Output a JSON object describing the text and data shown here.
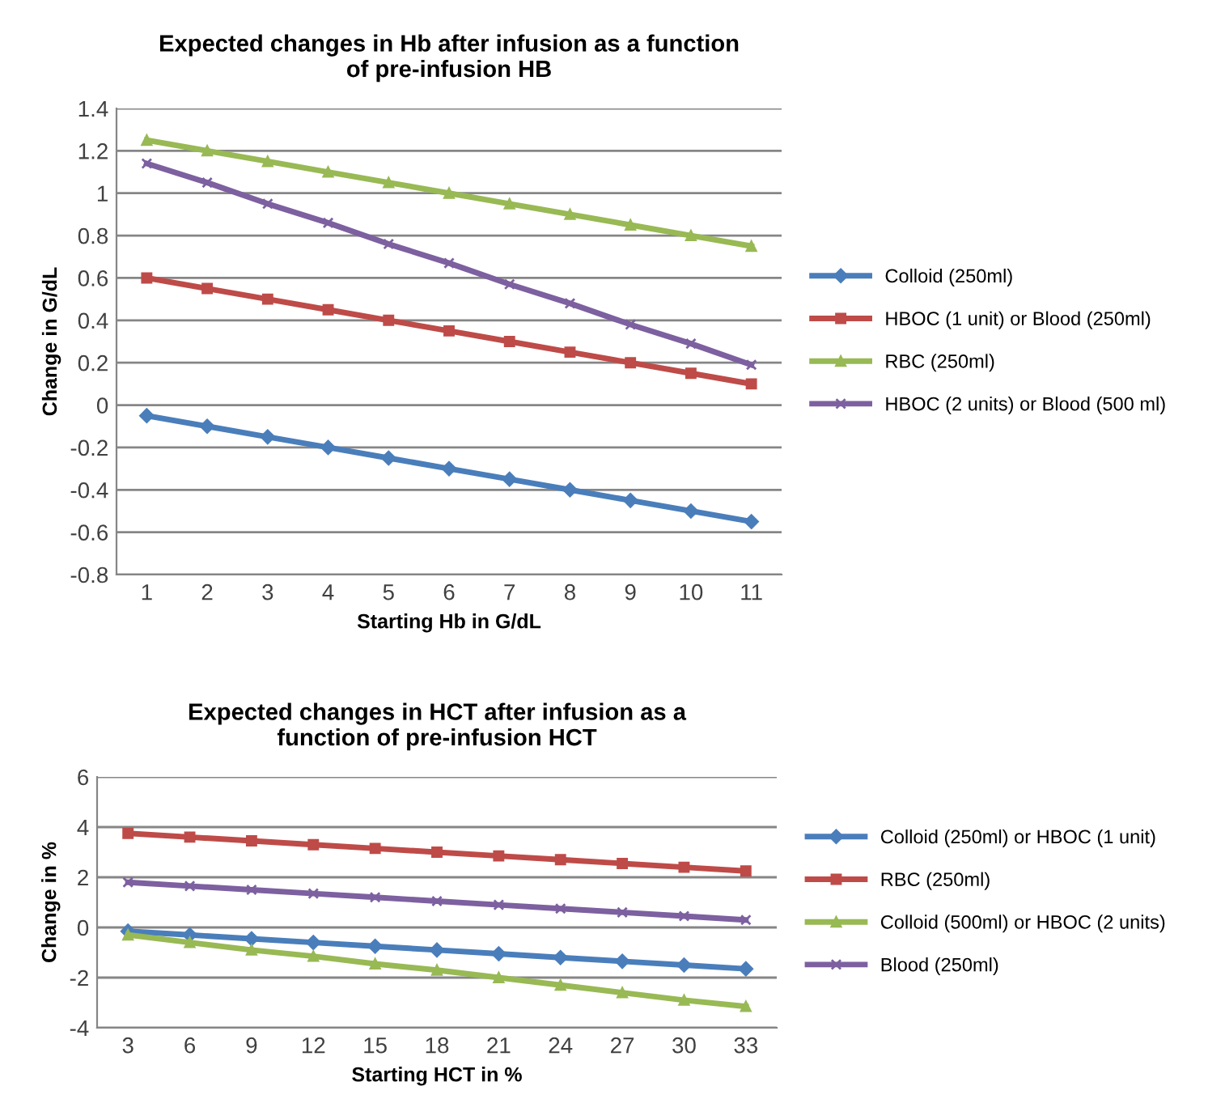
{
  "chart_data": [
    {
      "type": "line",
      "title": "Expected changes in Hb after infusion as a function\nof pre-infusion HB",
      "xlabel": "Starting Hb in G/dL",
      "ylabel": "Change in G/dL",
      "categories": [
        "1",
        "2",
        "3",
        "4",
        "5",
        "6",
        "7",
        "8",
        "9",
        "10",
        "11"
      ],
      "series": [
        {
          "name": "Colloid (250ml)",
          "color": "#4a7ebb",
          "marker": "diamond",
          "values": [
            -0.05,
            -0.1,
            -0.15,
            -0.2,
            -0.25,
            -0.3,
            -0.35,
            -0.4,
            -0.45,
            -0.5,
            -0.55
          ]
        },
        {
          "name": "HBOC (1 unit) or Blood (250ml)",
          "color": "#be4b48",
          "marker": "square",
          "values": [
            0.6,
            0.55,
            0.5,
            0.45,
            0.4,
            0.35,
            0.3,
            0.25,
            0.2,
            0.15,
            0.1
          ]
        },
        {
          "name": "RBC (250ml)",
          "color": "#98b954",
          "marker": "triangle",
          "values": [
            1.25,
            1.2,
            1.15,
            1.1,
            1.05,
            1.0,
            0.95,
            0.9,
            0.85,
            0.8,
            0.75
          ]
        },
        {
          "name": "HBOC (2 units) or Blood (500 ml)",
          "color": "#7d60a0",
          "marker": "cross",
          "values": [
            1.14,
            1.05,
            0.95,
            0.86,
            0.76,
            0.67,
            0.57,
            0.48,
            0.38,
            0.29,
            0.19
          ]
        }
      ],
      "ylim": [
        -0.8,
        1.4
      ],
      "yticks": [
        -0.8,
        -0.6,
        -0.4,
        -0.2,
        0,
        0.2,
        0.4,
        0.6,
        0.8,
        1,
        1.2,
        1.4
      ],
      "grid": "y",
      "legend": "right"
    },
    {
      "type": "line",
      "title": "Expected changes in HCT after infusion as a\nfunction of pre-infusion HCT",
      "xlabel": "Starting HCT in %",
      "ylabel": "Change in %",
      "categories": [
        "3",
        "6",
        "9",
        "12",
        "15",
        "18",
        "21",
        "24",
        "27",
        "30",
        "33"
      ],
      "series": [
        {
          "name": "Colloid (250ml) or HBOC (1 unit)",
          "color": "#4a7ebb",
          "marker": "diamond",
          "values": [
            -0.15,
            -0.3,
            -0.45,
            -0.6,
            -0.75,
            -0.9,
            -1.05,
            -1.2,
            -1.35,
            -1.5,
            -1.65
          ]
        },
        {
          "name": "RBC (250ml)",
          "color": "#be4b48",
          "marker": "square",
          "values": [
            3.75,
            3.6,
            3.45,
            3.3,
            3.15,
            3.0,
            2.85,
            2.7,
            2.55,
            2.4,
            2.25
          ]
        },
        {
          "name": "Colloid (500ml) or HBOC (2 units)",
          "color": "#98b954",
          "marker": "triangle",
          "values": [
            -0.3,
            -0.6,
            -0.9,
            -1.15,
            -1.45,
            -1.7,
            -2.0,
            -2.3,
            -2.6,
            -2.9,
            -3.15
          ]
        },
        {
          "name": "Blood (250ml)",
          "color": "#7d60a0",
          "marker": "cross",
          "values": [
            1.8,
            1.65,
            1.5,
            1.35,
            1.2,
            1.05,
            0.9,
            0.75,
            0.6,
            0.45,
            0.3
          ]
        }
      ],
      "ylim": [
        -4,
        6
      ],
      "yticks": [
        -4,
        -2,
        0,
        2,
        4,
        6
      ],
      "grid": "y",
      "legend": "right"
    }
  ]
}
